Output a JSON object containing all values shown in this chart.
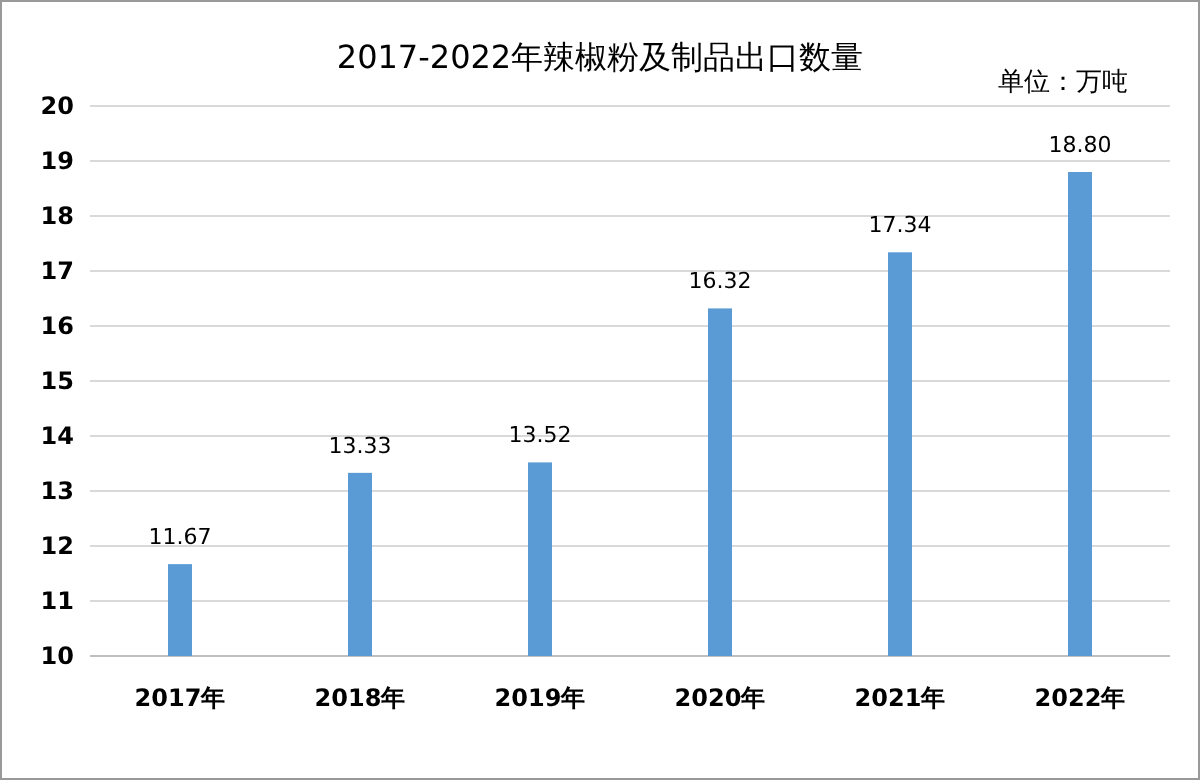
{
  "chart_data": {
    "type": "bar",
    "title": "2017-2022年辣椒粉及制品出口数量",
    "annotations": [
      "单位：万吨"
    ],
    "categories": [
      "2017年",
      "2018年",
      "2019年",
      "2020年",
      "2021年",
      "2022年"
    ],
    "values": [
      11.67,
      13.33,
      13.52,
      16.32,
      17.34,
      18.8
    ],
    "value_labels": [
      "11.67",
      "13.33",
      "13.52",
      "16.32",
      "17.34",
      "18.80"
    ],
    "color": "#5b9bd5",
    "ylim": [
      10,
      20
    ],
    "yticks": [
      10,
      11,
      12,
      13,
      14,
      15,
      16,
      17,
      18,
      19,
      20
    ],
    "grid": "y"
  }
}
